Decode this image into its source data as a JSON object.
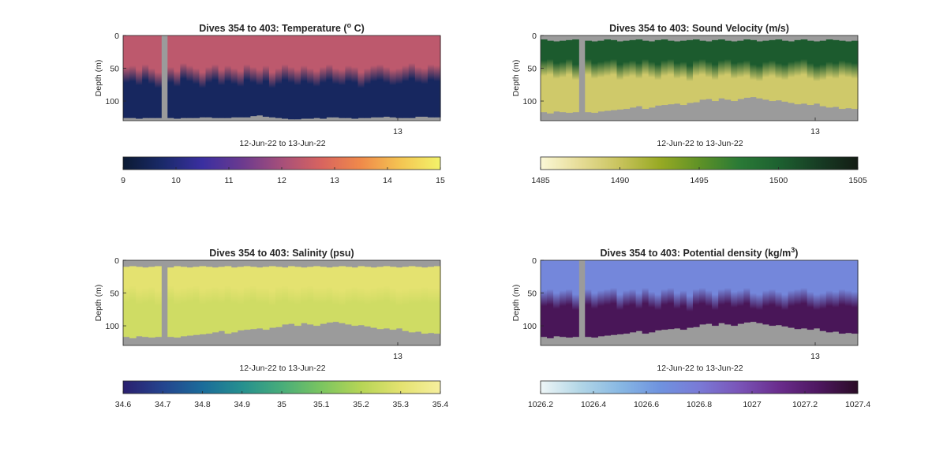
{
  "figure": {
    "background": "#ffffff",
    "frame_color": "#262626",
    "no_data_color": "#9b9b9b"
  },
  "chart_data": [
    {
      "type": "heatmap",
      "title_text": "Dives 354 to 403: Temperature (",
      "title_sup": "o",
      "title_end": " C)",
      "ylabel": "Depth (m)",
      "xlabel": "12-Jun-22 to 13-Jun-22",
      "x_ticks": [
        "13"
      ],
      "y_ticks": [
        "0",
        "50",
        "100"
      ],
      "ylim": [
        0,
        130
      ],
      "colorbar_ticks": [
        "9",
        "10",
        "11",
        "12",
        "13",
        "14",
        "15"
      ],
      "colorbar_range": [
        9,
        15
      ],
      "colormap": [
        "#0b1a33",
        "#1a2a6a",
        "#3a2fa0",
        "#6b3a8f",
        "#a64f7a",
        "#d8645f",
        "#f08a4a",
        "#f4c552",
        "#f2f36a"
      ],
      "upper_value": 12.35,
      "lower_value": 9.6,
      "profile_count": 50,
      "gap_profile": 6,
      "mixed_layer_base_m": [
        62,
        60,
        66,
        58,
        64,
        70,
        60,
        62,
        68,
        56,
        60,
        64,
        70,
        62,
        58,
        66,
        60,
        64,
        68,
        58,
        62,
        66,
        60,
        70,
        64,
        58,
        62,
        66,
        60,
        64,
        68,
        62,
        58,
        64,
        66,
        60,
        62,
        70,
        64,
        60,
        58,
        62,
        66,
        64,
        60,
        56,
        62,
        64,
        58,
        60
      ],
      "top_depth_m": [
        0,
        0,
        0,
        0,
        0,
        0,
        0,
        0,
        0,
        0,
        0,
        0,
        0,
        0,
        0,
        0,
        0,
        0,
        0,
        0,
        0,
        0,
        0,
        0,
        0,
        0,
        0,
        0,
        0,
        0,
        0,
        0,
        0,
        0,
        0,
        0,
        0,
        0,
        0,
        0,
        0,
        0,
        0,
        0,
        0,
        0,
        0,
        0,
        0,
        0
      ],
      "max_depth_m": [
        126,
        126,
        127,
        126,
        126,
        126,
        126,
        126,
        127,
        126,
        126,
        126,
        125,
        125,
        126,
        126,
        126,
        125,
        125,
        125,
        123,
        122,
        124,
        125,
        126,
        127,
        128,
        128,
        127,
        127,
        126,
        127,
        125,
        125,
        126,
        126,
        127,
        126,
        126,
        125,
        125,
        124,
        125,
        126,
        126,
        126,
        124,
        124,
        125,
        125
      ]
    },
    {
      "type": "heatmap",
      "title_text": "Dives 354 to 403: Sound Velocity (m/s)",
      "title_sup": "",
      "title_end": "",
      "ylabel": "Depth (m)",
      "xlabel": "12-Jun-22 to 13-Jun-22",
      "x_ticks": [
        "13"
      ],
      "y_ticks": [
        "0",
        "50",
        "100"
      ],
      "ylim": [
        0,
        130
      ],
      "colorbar_ticks": [
        "1485",
        "1490",
        "1495",
        "1500",
        "1505"
      ],
      "colorbar_range": [
        1485,
        1505
      ],
      "colormap": [
        "#fbf8d6",
        "#e6dc96",
        "#c8c35c",
        "#98aa24",
        "#5f9226",
        "#2a7a36",
        "#1d6130",
        "#173d24",
        "#131c14"
      ],
      "upper_value": 1500.4,
      "lower_value": 1489.4,
      "profile_count": 50,
      "gap_profile": 6,
      "mixed_layer_base_m": [
        52,
        50,
        56,
        54,
        50,
        58,
        52,
        50,
        56,
        54,
        52,
        50,
        58,
        54,
        52,
        56,
        50,
        54,
        58,
        52,
        50,
        56,
        54,
        60,
        52,
        50,
        54,
        58,
        52,
        50,
        56,
        54,
        52,
        58,
        60,
        54,
        52,
        56,
        58,
        54,
        52,
        50,
        56,
        60,
        58,
        54,
        56,
        52,
        54,
        56
      ],
      "top_depth_m": [
        6,
        8,
        9,
        8,
        7,
        6,
        7,
        8,
        9,
        8,
        6,
        7,
        9,
        8,
        7,
        6,
        8,
        9,
        7,
        6,
        8,
        9,
        8,
        7,
        6,
        8,
        9,
        7,
        6,
        8,
        9,
        8,
        6,
        7,
        9,
        8,
        7,
        6,
        8,
        9,
        7,
        6,
        8,
        9,
        8,
        6,
        7,
        8,
        9,
        8
      ],
      "max_depth_m": [
        117,
        119,
        116,
        117,
        118,
        117,
        116,
        117,
        118,
        116,
        115,
        114,
        113,
        112,
        110,
        108,
        112,
        110,
        107,
        106,
        105,
        104,
        106,
        103,
        102,
        98,
        97,
        100,
        96,
        98,
        100,
        97,
        95,
        94,
        96,
        98,
        100,
        99,
        101,
        103,
        105,
        104,
        106,
        104,
        108,
        110,
        109,
        112,
        111,
        112
      ]
    },
    {
      "type": "heatmap",
      "title_text": "Dives 354 to 403: Salinity (psu)",
      "title_sup": "",
      "title_end": "",
      "ylabel": "Depth (m)",
      "xlabel": "12-Jun-22 to 13-Jun-22",
      "x_ticks": [
        "13"
      ],
      "y_ticks": [
        "0",
        "50",
        "100"
      ],
      "ylim": [
        0,
        130
      ],
      "colorbar_ticks": [
        "34.6",
        "34.7",
        "34.8",
        "34.9",
        "35",
        "35.1",
        "35.2",
        "35.3",
        "35.4"
      ],
      "colorbar_range": [
        34.6,
        35.4
      ],
      "colormap": [
        "#2a1f6e",
        "#24448e",
        "#1b6c9a",
        "#26908f",
        "#48ad7a",
        "#7bc560",
        "#b6d556",
        "#e4e270",
        "#f6ef9e"
      ],
      "upper_value": 35.3,
      "lower_value": 35.255,
      "profile_count": 50,
      "gap_profile": 6,
      "mixed_layer_base_m": [
        55,
        52,
        58,
        56,
        54,
        60,
        55,
        52,
        58,
        56,
        54,
        52,
        58,
        56,
        54,
        56,
        52,
        56,
        58,
        54,
        52,
        56,
        56,
        60,
        54,
        52,
        56,
        58,
        54,
        52,
        56,
        56,
        54,
        58,
        60,
        56,
        54,
        56,
        58,
        56,
        54,
        52,
        56,
        60,
        58,
        56,
        56,
        54,
        56,
        56
      ],
      "top_depth_m": [
        10,
        9,
        10,
        11,
        10,
        9,
        10,
        11,
        9,
        10,
        11,
        10,
        9,
        10,
        11,
        10,
        9,
        11,
        10,
        9,
        10,
        11,
        10,
        9,
        10,
        11,
        9,
        10,
        11,
        10,
        9,
        10,
        11,
        10,
        9,
        10,
        11,
        9,
        10,
        11,
        10,
        9,
        10,
        11,
        10,
        9,
        10,
        11,
        10,
        9
      ],
      "max_depth_m": [
        117,
        119,
        116,
        117,
        118,
        117,
        116,
        117,
        118,
        116,
        115,
        114,
        113,
        112,
        110,
        108,
        112,
        110,
        107,
        106,
        105,
        104,
        106,
        103,
        102,
        98,
        97,
        100,
        96,
        98,
        100,
        97,
        95,
        94,
        96,
        98,
        100,
        99,
        101,
        103,
        105,
        104,
        106,
        104,
        108,
        110,
        109,
        112,
        111,
        112
      ]
    },
    {
      "type": "heatmap",
      "title_text": "Dives 354 to 403: Potential density (kg/m",
      "title_sup": "3",
      "title_end": ")",
      "ylabel": "Depth (m)",
      "xlabel": "12-Jun-22 to 13-Jun-22",
      "x_ticks": [
        "13"
      ],
      "y_ticks": [
        "0",
        "50",
        "100"
      ],
      "ylim": [
        0,
        130
      ],
      "colorbar_ticks": [
        "1026.2",
        "1026.4",
        "1026.6",
        "1026.8",
        "1027",
        "1027.2",
        "1027.4"
      ],
      "colorbar_range": [
        1026.2,
        1027.4
      ],
      "colormap": [
        "#eef6f7",
        "#b2d6e6",
        "#88b8e3",
        "#6f93df",
        "#7a7ad6",
        "#7a55b8",
        "#6a2d8d",
        "#4e1760",
        "#2a0c25"
      ],
      "upper_value": 1026.72,
      "lower_value": 1027.27,
      "profile_count": 50,
      "gap_profile": 6,
      "mixed_layer_base_m": [
        60,
        58,
        64,
        60,
        58,
        66,
        60,
        58,
        64,
        60,
        58,
        56,
        66,
        60,
        58,
        64,
        56,
        62,
        66,
        58,
        56,
        64,
        60,
        68,
        58,
        56,
        60,
        66,
        58,
        56,
        62,
        60,
        56,
        64,
        66,
        60,
        58,
        62,
        66,
        60,
        58,
        56,
        62,
        66,
        64,
        60,
        62,
        58,
        60,
        62
      ],
      "top_depth_m": [
        0,
        0,
        0,
        0,
        0,
        0,
        0,
        0,
        0,
        0,
        0,
        0,
        0,
        0,
        0,
        0,
        0,
        0,
        0,
        0,
        0,
        0,
        0,
        0,
        0,
        0,
        0,
        0,
        0,
        0,
        0,
        0,
        0,
        0,
        0,
        0,
        0,
        0,
        0,
        0,
        0,
        0,
        0,
        0,
        0,
        0,
        0,
        0,
        0,
        0
      ],
      "max_depth_m": [
        117,
        119,
        116,
        117,
        118,
        117,
        116,
        117,
        118,
        116,
        115,
        114,
        113,
        112,
        110,
        108,
        112,
        110,
        107,
        106,
        105,
        104,
        106,
        103,
        102,
        98,
        97,
        100,
        96,
        98,
        100,
        97,
        95,
        94,
        96,
        98,
        100,
        99,
        101,
        103,
        105,
        104,
        106,
        104,
        108,
        110,
        109,
        112,
        111,
        112
      ]
    }
  ]
}
